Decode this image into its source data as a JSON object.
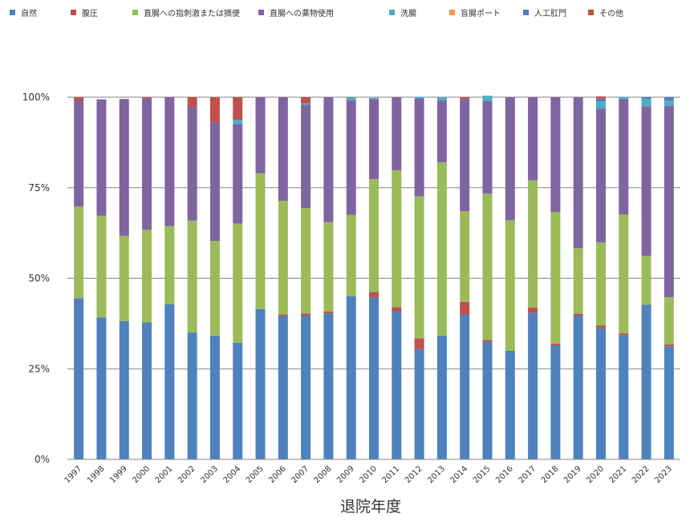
{
  "chart_data": {
    "type": "bar",
    "stacked": true,
    "percent": true,
    "title": "",
    "xlabel": "退院年度",
    "ylabel": "",
    "ylim": [
      0,
      100
    ],
    "y_ticks": [
      "0%",
      "25%",
      "50%",
      "75%",
      "100%"
    ],
    "grid": true,
    "legend_position": "top",
    "categories": [
      "1997",
      "1998",
      "1999",
      "2000",
      "2001",
      "2002",
      "2003",
      "2004",
      "2005",
      "2006",
      "2007",
      "2008",
      "2009",
      "2010",
      "2011",
      "2012",
      "2013",
      "2014",
      "2015",
      "2016",
      "2017",
      "2018",
      "2019",
      "2020",
      "2021",
      "2022",
      "2023"
    ],
    "series": [
      {
        "name": "自然",
        "color": "#4f81bd",
        "values": [
          44.5,
          39.2,
          38.2,
          37.8,
          42.8,
          35,
          34.2,
          32.2,
          41.5,
          39.6,
          39.7,
          40.3,
          45,
          44.7,
          40.8,
          30.4,
          34.2,
          40,
          32.4,
          30,
          40.5,
          31.5,
          39.6,
          36.2,
          34.3,
          42.7,
          31.2
        ]
      },
      {
        "name": "腹圧",
        "color": "#c0504d",
        "values": [
          0,
          0,
          0,
          0,
          0,
          0,
          0,
          0,
          0,
          0.4,
          0.6,
          0.5,
          0,
          1.5,
          1.2,
          3,
          0,
          3.5,
          0.6,
          0,
          1.4,
          0.5,
          0.6,
          0.8,
          0.5,
          0,
          0.5
        ]
      },
      {
        "name": "直腸への指刺激または摘便",
        "color": "#9bbb59",
        "values": [
          25.3,
          28.1,
          23.5,
          25.6,
          21.6,
          30.9,
          26.1,
          32.9,
          37.5,
          31.4,
          29.1,
          24.7,
          22.5,
          31.2,
          37.8,
          39.2,
          47.8,
          25,
          40.4,
          36,
          35.1,
          36.3,
          18.1,
          22.9,
          32.8,
          13.5,
          13.1
        ]
      },
      {
        "name": "直腸への薬物使用",
        "color": "#8064a2",
        "values": [
          29.2,
          32.1,
          37.8,
          36.3,
          35.6,
          31.3,
          32.8,
          27.5,
          21,
          28.6,
          28.5,
          34.5,
          31.6,
          22.1,
          20.2,
          27.1,
          17.1,
          31,
          25.5,
          34,
          23,
          31.7,
          41.7,
          36.9,
          31.9,
          41.3,
          52.8
        ]
      },
      {
        "name": "洗腸",
        "color": "#4bacc6",
        "values": [
          0,
          0,
          0,
          0,
          0,
          0,
          0,
          1.2,
          0,
          0,
          0.4,
          0,
          0.8,
          0.3,
          0,
          0.4,
          0.9,
          0,
          1.5,
          0,
          0,
          0,
          0,
          2,
          0.5,
          2,
          1.5
        ]
      },
      {
        "name": "盲腸ポート",
        "color": "#f79646",
        "values": [
          0,
          0,
          0,
          0,
          0,
          0,
          0,
          0,
          0,
          0,
          0,
          0,
          0,
          0,
          0,
          0,
          0,
          0,
          0,
          0,
          0,
          0,
          0,
          0,
          0,
          0,
          0
        ]
      },
      {
        "name": "人工肛門",
        "color": "#4f81bd",
        "values": [
          0,
          0,
          0,
          0,
          0,
          0,
          0,
          0,
          0,
          0,
          0,
          0,
          0,
          0,
          0,
          0,
          0,
          0,
          0,
          0,
          0,
          0,
          0,
          0.8,
          0,
          0.5,
          0.9
        ]
      },
      {
        "name": "その他",
        "color": "#c0504d",
        "values": [
          1,
          0,
          0,
          0.3,
          0,
          2.8,
          6.9,
          6.2,
          0,
          0,
          1.7,
          0,
          0,
          0,
          0,
          0,
          0,
          0.5,
          0,
          0,
          0,
          0,
          0,
          0.6,
          0,
          0,
          0
        ]
      }
    ]
  }
}
